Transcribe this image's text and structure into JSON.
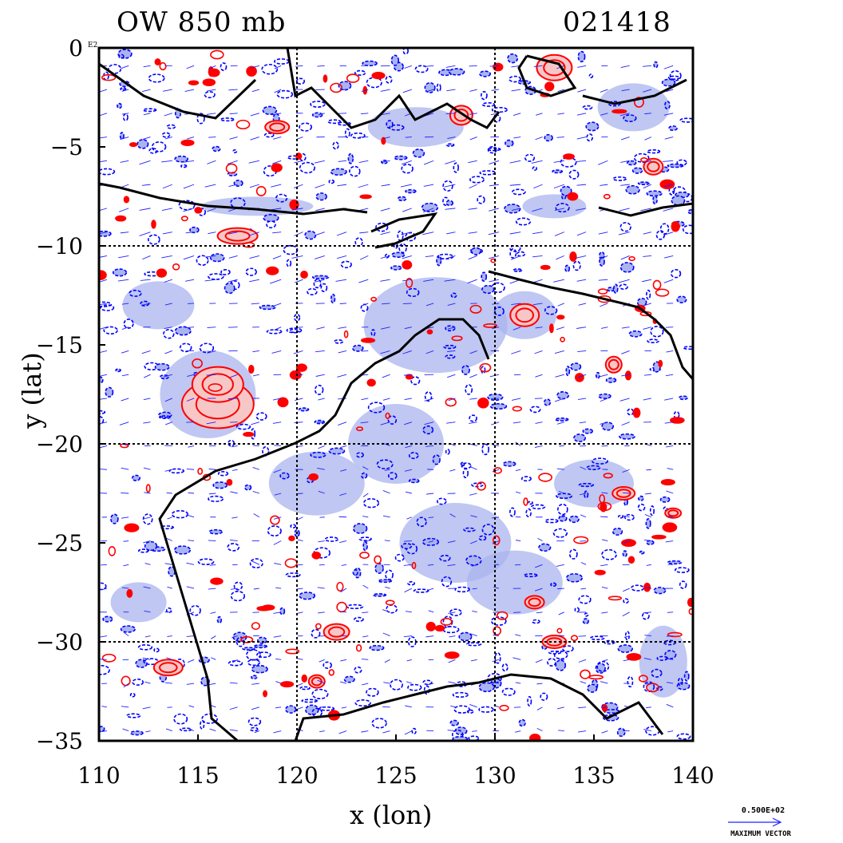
{
  "title_left": "OW 850 mb",
  "title_right": "021418",
  "xlabel": "x (lon)",
  "ylabel": "y (lat)",
  "x_ticks": [
    "110",
    "115",
    "120",
    "125",
    "130",
    "135",
    "140"
  ],
  "y_ticks": [
    "0",
    "−5",
    "−10",
    "−15",
    "−20",
    "−25",
    "−30",
    "−35"
  ],
  "y_tick_exponent": "E2",
  "vector_scale_value": "0.500E+02",
  "vector_legend": "MAXIMUM VECTOR",
  "map": {
    "x_range": [
      110,
      140
    ],
    "y_range": [
      -35,
      0
    ],
    "grid_lon": [
      120,
      130
    ],
    "grid_lat": [
      -10,
      -20,
      -30
    ],
    "colors": {
      "positive_contour": "#ff0000",
      "positive_fill": "#f7c7c7",
      "negative_contour": "#0000ff",
      "negative_fill": "#aab4ee",
      "vectors": "#2020ff",
      "coastline": "#000000"
    }
  }
}
